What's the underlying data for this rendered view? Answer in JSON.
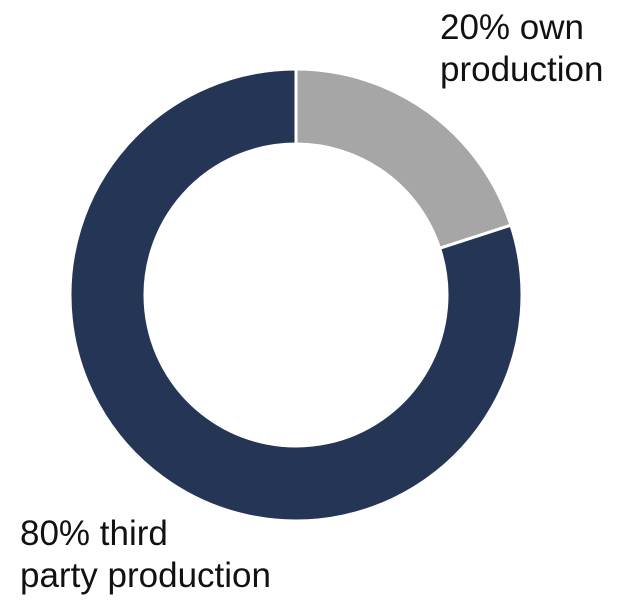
{
  "chart_data": {
    "type": "pie",
    "donut": true,
    "start_angle_deg": 0,
    "direction": "clockwise",
    "slices": [
      {
        "key": "own",
        "value": 20,
        "color": "#a6a6a6",
        "label_lines": [
          "20% own",
          "production"
        ]
      },
      {
        "key": "third",
        "value": 80,
        "color": "#243555",
        "label_lines": [
          "80% third",
          "party production"
        ]
      }
    ],
    "separator_color": "#ffffff",
    "background": "#ffffff"
  }
}
